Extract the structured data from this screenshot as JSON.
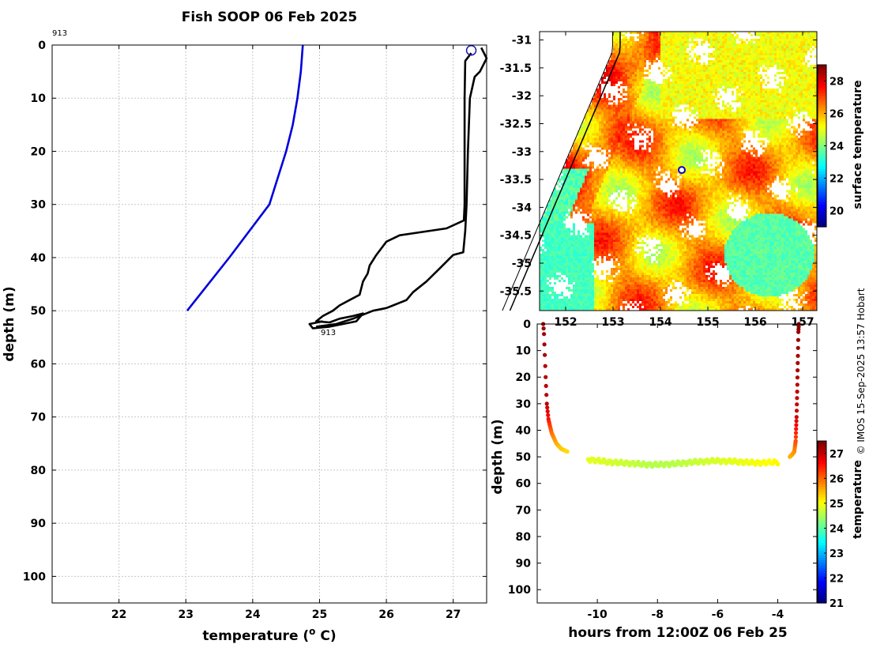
{
  "title": "Fish SOOP 06 Feb 2025",
  "credit": "© IMOS 15-Sep-2025 13:57 Hobart",
  "chart_data": [
    {
      "id": "profile",
      "type": "line",
      "xlabel": "temperature (",
      "xlabel_sup": "o",
      "xlabel_tail": " C)",
      "ylabel": "depth (m)",
      "xlim": [
        21,
        27.5
      ],
      "ylim": [
        0,
        105
      ],
      "xticks": [
        22,
        23,
        24,
        25,
        26,
        27
      ],
      "yticks": [
        0,
        10,
        20,
        30,
        40,
        50,
        60,
        70,
        80,
        90,
        100
      ],
      "grid": true,
      "annotations": [
        {
          "text": "913",
          "x": 21,
          "y": -2
        },
        {
          "text": "913",
          "x": 25.1,
          "y": 54
        }
      ],
      "series": [
        {
          "name": "climatology",
          "color": "#0000dd",
          "points": [
            [
              24.75,
              0
            ],
            [
              24.72,
              5
            ],
            [
              24.67,
              10
            ],
            [
              24.6,
              15
            ],
            [
              24.5,
              20
            ],
            [
              24.25,
              30
            ],
            [
              23.65,
              40
            ],
            [
              23.02,
              50
            ]
          ]
        },
        {
          "name": "fish-descent",
          "color": "#000000",
          "points": [
            [
              27.27,
              1.5
            ],
            [
              27.18,
              3
            ],
            [
              27.17,
              10
            ],
            [
              27.17,
              20
            ],
            [
              27.17,
              30
            ],
            [
              27.16,
              33
            ],
            [
              26.9,
              34.5
            ],
            [
              26.2,
              35.8
            ],
            [
              26.0,
              37
            ],
            [
              25.85,
              39.5
            ],
            [
              25.75,
              41.5
            ],
            [
              25.72,
              43
            ],
            [
              25.65,
              44.5
            ],
            [
              25.6,
              47
            ],
            [
              25.45,
              48
            ],
            [
              25.3,
              49
            ],
            [
              25.2,
              50
            ],
            [
              25.05,
              51
            ],
            [
              24.95,
              52
            ],
            [
              25.15,
              52.2
            ],
            [
              25.3,
              51.5
            ],
            [
              25.5,
              51
            ],
            [
              25.65,
              50.5
            ],
            [
              25.55,
              52
            ],
            [
              25.35,
              52.5
            ],
            [
              25.15,
              53
            ],
            [
              24.9,
              53.3
            ],
            [
              24.85,
              52.5
            ],
            [
              25.05,
              52
            ]
          ]
        },
        {
          "name": "fish-ascent",
          "color": "#000000",
          "points": [
            [
              24.95,
              53
            ],
            [
              25.25,
              52.5
            ],
            [
              25.5,
              51.5
            ],
            [
              25.7,
              50.5
            ],
            [
              25.8,
              50
            ],
            [
              26.0,
              49.5
            ],
            [
              26.1,
              49
            ],
            [
              26.3,
              48
            ],
            [
              26.4,
              46.5
            ],
            [
              26.6,
              44.5
            ],
            [
              26.8,
              42
            ],
            [
              27.0,
              39.5
            ],
            [
              27.15,
              39
            ],
            [
              27.18,
              35
            ],
            [
              27.2,
              30
            ],
            [
              27.22,
              20
            ],
            [
              27.25,
              10
            ],
            [
              27.32,
              6
            ],
            [
              27.4,
              5
            ],
            [
              27.5,
              2.5
            ],
            [
              27.42,
              0.5
            ]
          ]
        }
      ],
      "marker": {
        "name": "surface-position",
        "x": 27.27,
        "y": 1,
        "color": "#1a1aaa"
      }
    },
    {
      "id": "sst-map",
      "type": "heatmap",
      "xlim": [
        151.45,
        157.3
      ],
      "ylim": [
        -35.85,
        -30.85
      ],
      "xticks": [
        152,
        153,
        154,
        155,
        156,
        157
      ],
      "yticks": [
        -31,
        -31.5,
        -32,
        -32.5,
        -33,
        -33.5,
        -34,
        -34.5,
        -35,
        -35.5
      ],
      "ytick_labels": [
        "-31",
        "-31.5",
        "-32",
        "-32.5",
        "-33",
        "-33.5",
        "-34",
        "-34.5",
        "-35",
        "-35.5"
      ],
      "colorbar": {
        "label": "surface temperature",
        "range": [
          19,
          29
        ],
        "ticks": [
          20,
          22,
          24,
          26,
          28
        ]
      },
      "marker": {
        "name": "fish-location",
        "lon": 154.45,
        "lat": -33.33,
        "color": "#0000cc"
      }
    },
    {
      "id": "depth-time",
      "type": "scatter",
      "xlabel": "hours from 12:00Z 06 Feb 25",
      "ylabel": "depth (m)",
      "xlim": [
        -12.0,
        -2.7
      ],
      "ylim": [
        0,
        105
      ],
      "xticks": [
        -10,
        -8,
        -6,
        -4
      ],
      "yticks": [
        0,
        10,
        20,
        30,
        40,
        50,
        60,
        70,
        80,
        90,
        100
      ],
      "colorbar": {
        "label": "temperature",
        "range": [
          21,
          27.5
        ],
        "ticks": [
          21,
          22,
          23,
          24,
          25,
          26,
          27
        ]
      },
      "segments": [
        {
          "name": "descent",
          "t0": -11.8,
          "t1": -11.0,
          "profile": [
            [
              0,
              0
            ],
            [
              0.03,
              3
            ],
            [
              0.06,
              10
            ],
            [
              0.1,
              20
            ],
            [
              0.15,
              30
            ],
            [
              0.22,
              36
            ],
            [
              0.35,
              41
            ],
            [
              0.55,
              45
            ],
            [
              0.75,
              47
            ],
            [
              1.0,
              48
            ]
          ],
          "temp": [
            [
              0,
              27.3
            ],
            [
              30,
              27.1
            ],
            [
              36,
              26.6
            ],
            [
              41,
              26.0
            ],
            [
              45,
              25.6
            ],
            [
              48,
              25.3
            ]
          ]
        },
        {
          "name": "bottom",
          "t0": -10.3,
          "t1": -4.0,
          "depths": [
            51,
            52,
            52.5,
            53,
            52.7,
            52,
            51.5,
            51.8,
            52.3,
            52.0
          ],
          "temps": [
            24.9,
            24.8,
            24.7,
            24.6,
            24.6,
            24.7,
            24.8,
            24.9,
            25.0,
            25.1
          ]
        },
        {
          "name": "ascent",
          "t0": -3.6,
          "t1": -3.3,
          "profile": [
            [
              0,
              50
            ],
            [
              0.3,
              49
            ],
            [
              0.5,
              48
            ],
            [
              0.65,
              44
            ],
            [
              0.75,
              35
            ],
            [
              0.82,
              25
            ],
            [
              0.9,
              12
            ],
            [
              0.95,
              3
            ],
            [
              1.0,
              0
            ]
          ],
          "temp": [
            [
              50,
              25.5
            ],
            [
              44,
              26.2
            ],
            [
              35,
              27.0
            ],
            [
              0,
              27.4
            ]
          ]
        }
      ]
    }
  ]
}
